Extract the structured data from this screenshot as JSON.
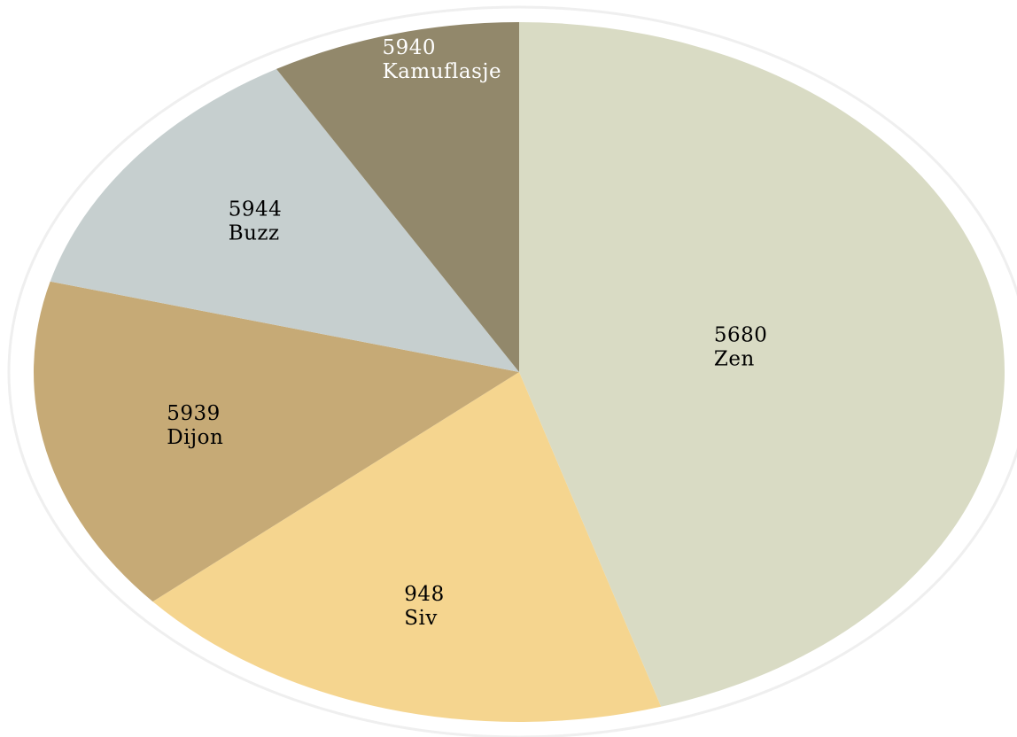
{
  "chart_data": {
    "type": "pie",
    "slices": [
      {
        "label": "Zen",
        "value": 5680,
        "color": "#d9dbc4",
        "text_color": "#000000"
      },
      {
        "label": "Siv",
        "value": 948,
        "color": "#f5d58f",
        "text_color": "#000000"
      },
      {
        "label": "Dijon",
        "value": 5939,
        "color": "#c6aa76",
        "text_color": "#000000"
      },
      {
        "label": "Buzz",
        "value": 5944,
        "color": "#c6cfcf",
        "text_color": "#000000"
      },
      {
        "label": "Kamuflasje",
        "value": 5940,
        "color": "#92886b",
        "text_color": "#ffffff"
      }
    ],
    "title": "",
    "legend": "none"
  }
}
